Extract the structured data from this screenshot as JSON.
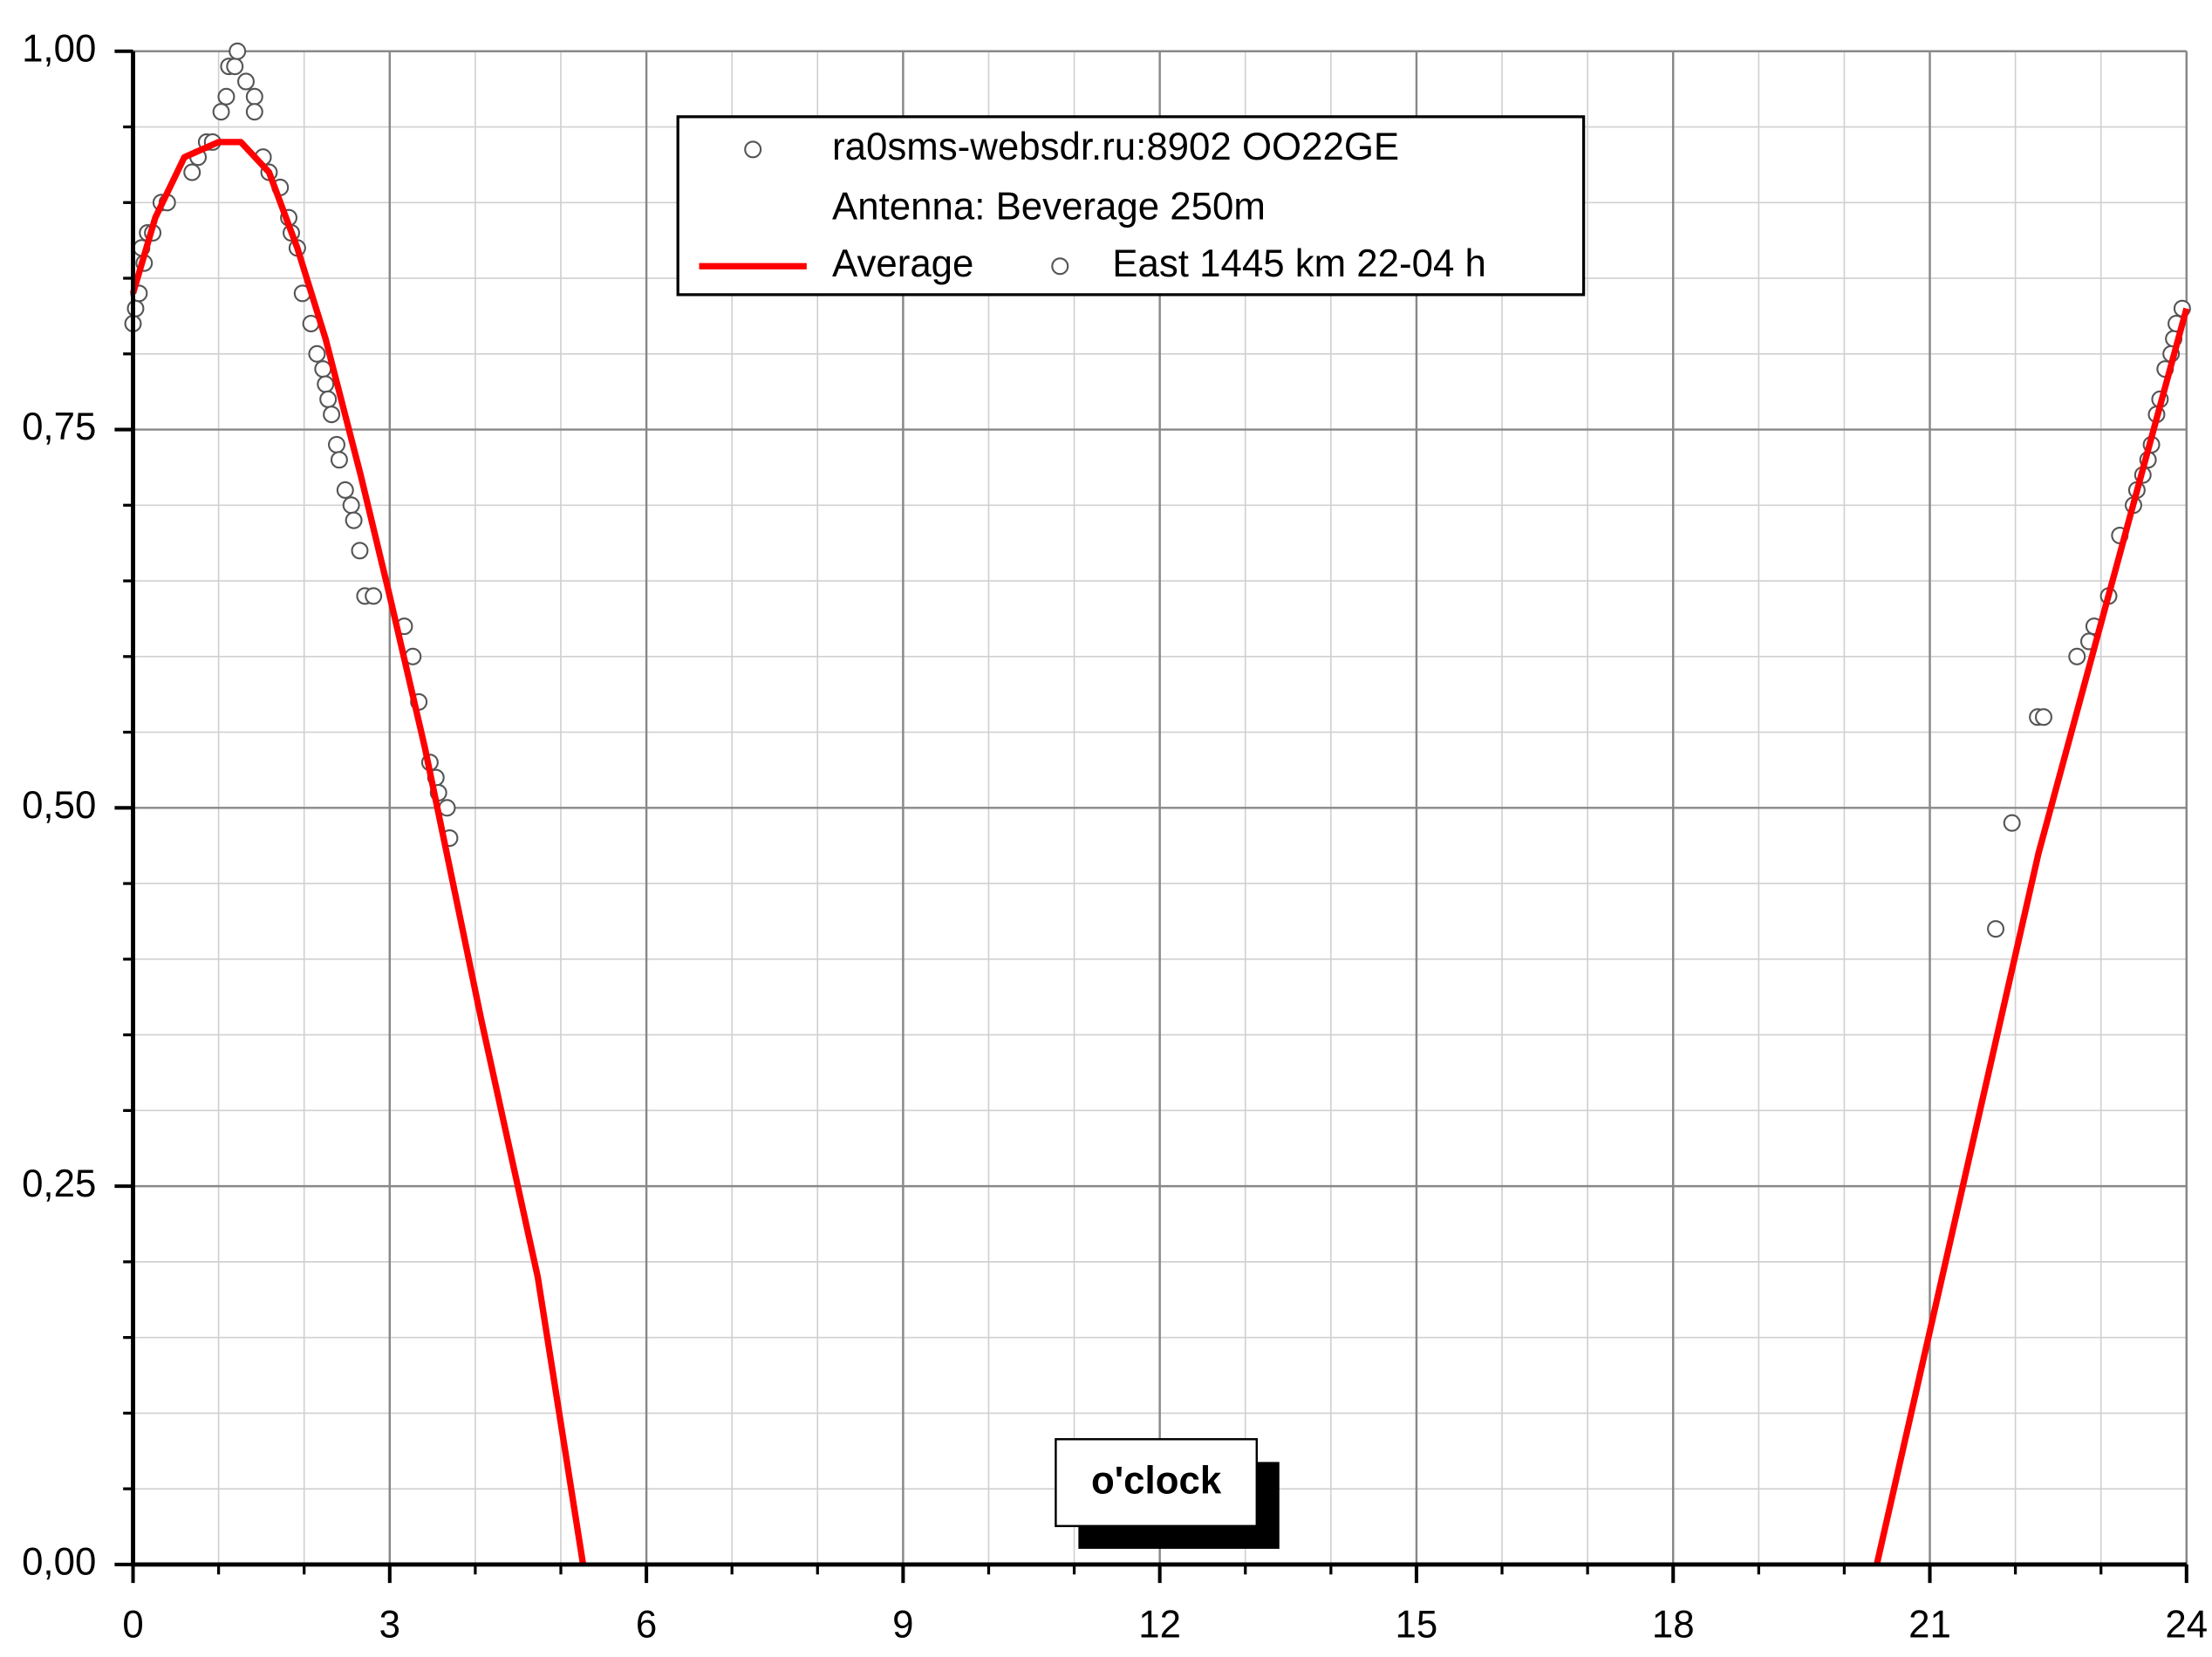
{
  "chart_data": {
    "type": "scatter-line",
    "x_label": "o'clock",
    "xlim": [
      0,
      24
    ],
    "xticks": [
      0,
      3,
      6,
      9,
      12,
      15,
      18,
      21,
      24
    ],
    "ylim": [
      0,
      1
    ],
    "yticks": [
      {
        "value": 0,
        "label": "0,00"
      },
      {
        "value": 0.25,
        "label": "0,25"
      },
      {
        "value": 0.5,
        "label": "0,50"
      },
      {
        "value": 0.75,
        "label": "0,75"
      },
      {
        "value": 1,
        "label": "1,00"
      }
    ],
    "grid": true,
    "minor_grid": {
      "x": 1,
      "y": 0.05
    },
    "legend_position": "top",
    "legend_note": "Antenna: Beverage 250m",
    "series": [
      {
        "name": "ra0sms-websdr.ru:8902 OO22GE",
        "kind": "scatter",
        "color": "#555555",
        "x": [
          0,
          0.03,
          0.07,
          0.1,
          0.13,
          0.17,
          0.23,
          0.33,
          0.4,
          0.69,
          0.76,
          0.86,
          0.93,
          1.03,
          1.09,
          1.12,
          1.19,
          1.22,
          1.32,
          1.42,
          1.42,
          1.52,
          1.59,
          1.72,
          1.82,
          1.85,
          1.92,
          1.98,
          2.08,
          2.15,
          2.22,
          2.25,
          2.28,
          2.32,
          2.38,
          2.41,
          2.48,
          2.55,
          2.58,
          2.65,
          2.71,
          2.81,
          3.17,
          3.27,
          3.34,
          3.47,
          3.54,
          3.57,
          3.67,
          3.7,
          21.77,
          21.96,
          22.26,
          22.33,
          22.72,
          22.86,
          22.92,
          23.09,
          23.22,
          23.38,
          23.42,
          23.49,
          23.55,
          23.59,
          23.65,
          23.69,
          23.75,
          23.82,
          23.85,
          23.88,
          23.95
        ],
        "values": [
          0.82,
          0.83,
          0.84,
          0.87,
          0.86,
          0.88,
          0.88,
          0.9,
          0.9,
          0.92,
          0.93,
          0.94,
          0.94,
          0.96,
          0.97,
          0.99,
          0.99,
          1.0,
          0.98,
          0.97,
          0.96,
          0.93,
          0.92,
          0.91,
          0.89,
          0.88,
          0.87,
          0.84,
          0.82,
          0.8,
          0.79,
          0.78,
          0.77,
          0.76,
          0.74,
          0.73,
          0.71,
          0.7,
          0.69,
          0.67,
          0.64,
          0.64,
          0.62,
          0.6,
          0.57,
          0.53,
          0.52,
          0.51,
          0.5,
          0.48,
          0.42,
          0.49,
          0.56,
          0.56,
          0.6,
          0.61,
          0.62,
          0.64,
          0.68,
          0.7,
          0.71,
          0.72,
          0.73,
          0.74,
          0.76,
          0.77,
          0.79,
          0.8,
          0.81,
          0.82,
          0.83
        ]
      },
      {
        "name": "Average",
        "kind": "line",
        "color": "#ff0000",
        "x": [
          0,
          0.26,
          0.6,
          1.0,
          1.26,
          1.59,
          1.92,
          2.25,
          2.66,
          3.0,
          3.41,
          4.07,
          4.73,
          5.26,
          12,
          20.38,
          22.27,
          24
        ],
        "values": [
          0.84,
          0.89,
          0.93,
          0.94,
          0.94,
          0.92,
          0.87,
          0.81,
          0.72,
          0.64,
          0.54,
          0.36,
          0.19,
          0,
          null,
          0,
          0.47,
          0.83
        ]
      },
      {
        "name": "East 1445 km 22-04 h",
        "kind": "scatter",
        "color": "#555555",
        "x": [],
        "values": []
      }
    ]
  }
}
